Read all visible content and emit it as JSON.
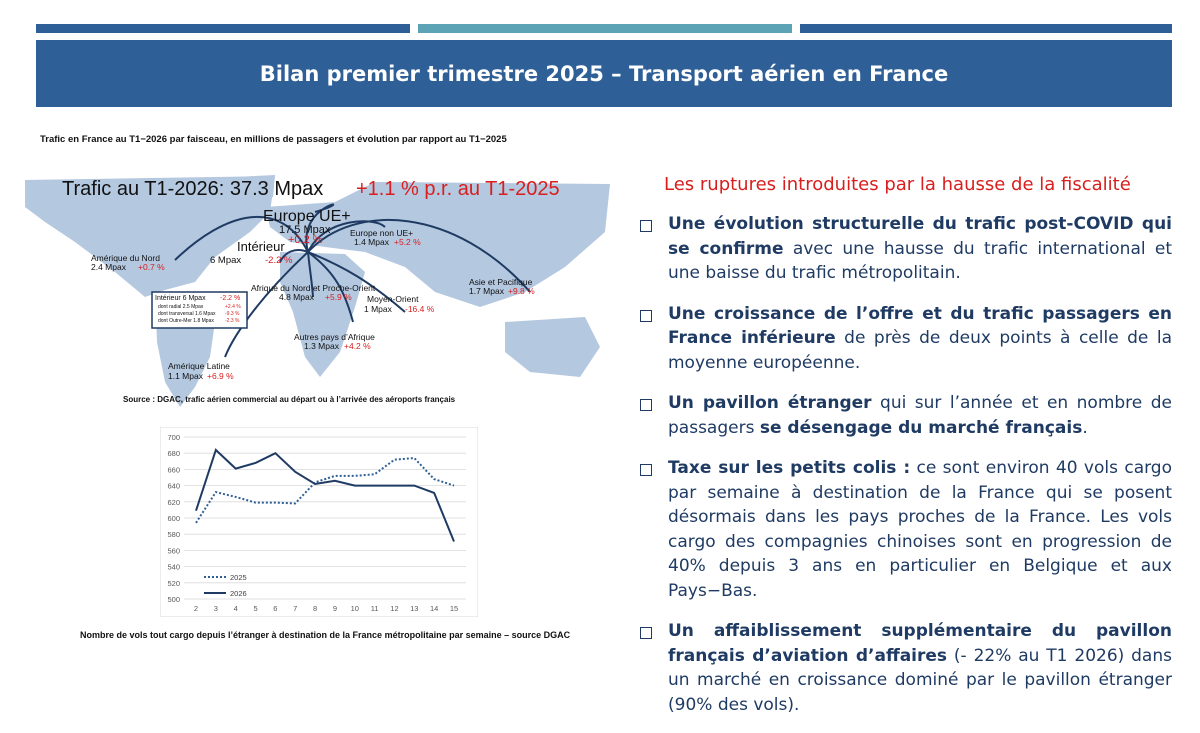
{
  "title": "Bilan premier trimestre 2025 – Transport aérien en France",
  "map": {
    "caption": "Trafic en France au T1−2026 par faisceau, en millions de passagers et évolution par rapport au T1−2025",
    "headline": "Trafic au T1-2026: 37.3 Mpax",
    "headline_change": "+1.1 % p.r. au T1-2025",
    "source": "Source : DGAC, trafic aérien commercial au départ ou à l’arrivée des aéroports français",
    "regions": {
      "europe_ue": {
        "name": "Europe UE+",
        "value": "17.5 Mpax",
        "change": "+0.2 %"
      },
      "europe_non_ue": {
        "name": "Europe non UE+",
        "value": "1.4 Mpax",
        "change": "+5.2 %"
      },
      "interieur": {
        "name": "Intérieur",
        "value": "6 Mpax",
        "change": "-2.2 %"
      },
      "amerique_nord": {
        "name": "Amérique du Nord",
        "value": "2.4 Mpax",
        "change": "+0.7 %"
      },
      "afrique_nord": {
        "name": "Afrique du Nord et Proche-Orient",
        "value": "4.8 Mpax",
        "change": "+5.9 %"
      },
      "moyen_orient": {
        "name": "Moyen-Orient",
        "value": "1 Mpax",
        "change": "-16.4 %"
      },
      "asie": {
        "name": "Asie et Pacifique",
        "value": "1.7 Mpax",
        "change": "+9.8 %"
      },
      "afrique": {
        "name": "Autres pays d’Afrique",
        "value": "1.3 Mpax",
        "change": "+4.2 %"
      },
      "amerique_latine": {
        "name": "Amérique Latine",
        "value": "1.1 Mpax",
        "change": "+6.9 %"
      }
    },
    "inset": {
      "title": "Intérieur 6 Mpax",
      "title_change": "-2.2 %",
      "rows": [
        {
          "label": "dont radial 2.5 Mpax",
          "change": "+2.4 %"
        },
        {
          "label": "dont transversal 1.6 Mpax",
          "change": "-9.3 %"
        },
        {
          "label": "dont Outre-Mer 1.8 Mpax",
          "change": "-2.3 %"
        }
      ]
    }
  },
  "chart_data": {
    "type": "line",
    "x": [
      2,
      3,
      4,
      5,
      6,
      7,
      8,
      9,
      10,
      11,
      12,
      13,
      14,
      15
    ],
    "ylim": [
      500,
      700
    ],
    "yticks": [
      500,
      520,
      540,
      560,
      580,
      600,
      620,
      640,
      660,
      680,
      700
    ],
    "grid": true,
    "legend_position": "bottom-left",
    "series": [
      {
        "name": "2025",
        "style": "dotted",
        "color": "#2f5f97",
        "values": [
          594,
          632,
          626,
          619,
          619,
          618,
          644,
          652,
          652,
          654,
          672,
          674,
          648,
          640
        ]
      },
      {
        "name": "2026",
        "style": "solid",
        "color": "#1f3b63",
        "values": [
          609,
          684,
          661,
          668,
          680,
          657,
          642,
          646,
          640,
          640,
          640,
          640,
          631,
          571
        ]
      }
    ],
    "caption": "Nombre de vols tout cargo depuis l’étranger à destination de la France métropolitaine par semaine – source DGAC"
  },
  "right": {
    "heading": "Les ruptures introduites par la hausse de la fiscalité",
    "bullets": [
      {
        "bold": "Une évolution structurelle du trafic post-COVID qui se confirme",
        "text": " avec une hausse du trafic international et une baisse du trafic métropolitain."
      },
      {
        "bold": "Une croissance de l’offre et du trafic passagers en France inférieure",
        "text": " de près de deux points à celle de la moyenne européenne."
      },
      {
        "bold": "Un pavillon étranger",
        "text": " qui sur l’année et en nombre de passagers ",
        "bold2": "se désengage du marché français",
        "text2": "."
      },
      {
        "bold": "Taxe sur les petits colis :",
        "text": " ce sont environ 40 vols cargo par semaine à destination de la France qui se posent désormais dans les pays proches de la France. Les vols cargo des compagnies chinoises sont en progression de 40% depuis 3 ans en particulier en Belgique et aux Pays−Bas."
      },
      {
        "bold": "Un affaiblissement supplémentaire du pavillon français d’aviation d’affaires",
        "text": " (- 22% au T1 2026) dans un marché en croissance dominé par le pavillon étranger (90% des vols)."
      }
    ]
  },
  "colors": {
    "banner": "#2f5f97",
    "accent_teal": "#5ba3b5",
    "map_land": "#b4c8e0",
    "red": "#d81e1e",
    "text": "#1f3b63"
  }
}
